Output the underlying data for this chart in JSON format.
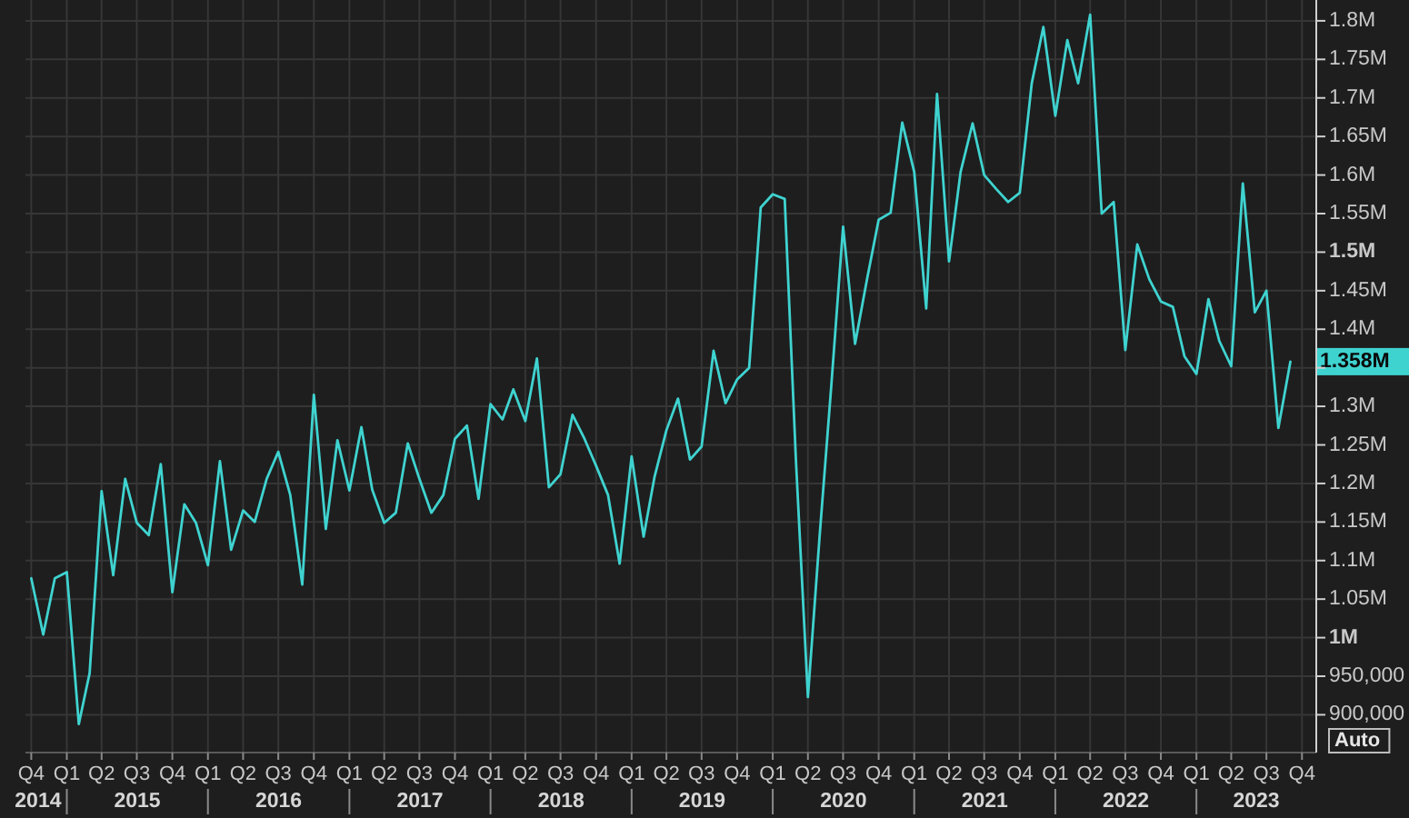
{
  "chart_data": {
    "type": "line",
    "color": "#3fd3d0",
    "x": [
      "2014-10",
      "2014-11",
      "2014-12",
      "2015-01",
      "2015-02",
      "2015-03",
      "2015-04",
      "2015-05",
      "2015-06",
      "2015-07",
      "2015-08",
      "2015-09",
      "2015-10",
      "2015-11",
      "2015-12",
      "2016-01",
      "2016-02",
      "2016-03",
      "2016-04",
      "2016-05",
      "2016-06",
      "2016-07",
      "2016-08",
      "2016-09",
      "2016-10",
      "2016-11",
      "2016-12",
      "2017-01",
      "2017-02",
      "2017-03",
      "2017-04",
      "2017-05",
      "2017-06",
      "2017-07",
      "2017-08",
      "2017-09",
      "2017-10",
      "2017-11",
      "2017-12",
      "2018-01",
      "2018-02",
      "2018-03",
      "2018-04",
      "2018-05",
      "2018-06",
      "2018-07",
      "2018-08",
      "2018-09",
      "2018-10",
      "2018-11",
      "2018-12",
      "2019-01",
      "2019-02",
      "2019-03",
      "2019-04",
      "2019-05",
      "2019-06",
      "2019-07",
      "2019-08",
      "2019-09",
      "2019-10",
      "2019-11",
      "2019-12",
      "2020-01",
      "2020-02",
      "2020-03",
      "2020-04",
      "2020-05",
      "2020-06",
      "2020-07",
      "2020-08",
      "2020-09",
      "2020-10",
      "2020-11",
      "2020-12",
      "2021-01",
      "2021-02",
      "2021-03",
      "2021-04",
      "2021-05",
      "2021-06",
      "2021-07",
      "2021-08",
      "2021-09",
      "2021-10",
      "2021-11",
      "2021-12",
      "2022-01",
      "2022-02",
      "2022-03",
      "2022-04",
      "2022-05",
      "2022-06",
      "2022-07",
      "2022-08",
      "2022-09",
      "2022-10",
      "2022-11",
      "2022-12",
      "2023-01",
      "2023-02",
      "2023-03",
      "2023-04",
      "2023-05",
      "2023-06",
      "2023-07",
      "2023-08",
      "2023-09"
    ],
    "values": [
      1077000,
      1004000,
      1077000,
      1085000,
      888000,
      954000,
      1190000,
      1081000,
      1206000,
      1149000,
      1133000,
      1225000,
      1059000,
      1173000,
      1149000,
      1094000,
      1229000,
      1114000,
      1165000,
      1150000,
      1206000,
      1241000,
      1185000,
      1069000,
      1315000,
      1141000,
      1256000,
      1191000,
      1273000,
      1192000,
      1149000,
      1162000,
      1252000,
      1206000,
      1162000,
      1185000,
      1258000,
      1275000,
      1180000,
      1303000,
      1283000,
      1322000,
      1281000,
      1362000,
      1195000,
      1212000,
      1289000,
      1258000,
      1223000,
      1185000,
      1096000,
      1235000,
      1131000,
      1208000,
      1269000,
      1310000,
      1231000,
      1248000,
      1372000,
      1304000,
      1335000,
      1350000,
      1558000,
      1575000,
      1569000,
      1230000,
      923000,
      1130000,
      1330000,
      1533000,
      1381000,
      1465000,
      1542000,
      1551000,
      1668000,
      1604000,
      1427000,
      1705000,
      1488000,
      1604000,
      1667000,
      1600000,
      1582000,
      1565000,
      1577000,
      1719000,
      1792000,
      1677000,
      1775000,
      1719000,
      1808000,
      1550000,
      1565000,
      1373000,
      1510000,
      1465000,
      1436000,
      1429000,
      1365000,
      1342000,
      1439000,
      1385000,
      1352000,
      1589000,
      1422000,
      1450000,
      1272000,
      1358000
    ],
    "value_labels": [
      null,
      null,
      null,
      null,
      null,
      null,
      null,
      null,
      null,
      null,
      null,
      null,
      null,
      null,
      null,
      null,
      null,
      null,
      null,
      null,
      null,
      null,
      null,
      null,
      null,
      null,
      null,
      null,
      null,
      null,
      null,
      null,
      null,
      null,
      null,
      null,
      null,
      null,
      null,
      null,
      null,
      null,
      null,
      null,
      null,
      null,
      null,
      null,
      null,
      null,
      null,
      null,
      null,
      null,
      null,
      null,
      null,
      null,
      null,
      null,
      null,
      null,
      null,
      null,
      null,
      null,
      null,
      null,
      null,
      null,
      null,
      null,
      null,
      null,
      null,
      null,
      null,
      null,
      null,
      null,
      null,
      null,
      null,
      null,
      null,
      null,
      null,
      null,
      null,
      null,
      null,
      null,
      null,
      null,
      null,
      null,
      null,
      null,
      null,
      null,
      null,
      null,
      null,
      null,
      null,
      null,
      null,
      "1.358M"
    ],
    "xlim": [
      "2014-09-16",
      "2023-11-07"
    ],
    "xticks": [
      {
        "value": "2014-10",
        "label": "Q4"
      },
      {
        "value": "2015-01",
        "label": "Q1"
      },
      {
        "value": "2015-04",
        "label": "Q2"
      },
      {
        "value": "2015-07",
        "label": "Q3"
      },
      {
        "value": "2015-10",
        "label": "Q4"
      },
      {
        "value": "2016-01",
        "label": "Q1"
      },
      {
        "value": "2016-04",
        "label": "Q2"
      },
      {
        "value": "2016-07",
        "label": "Q3"
      },
      {
        "value": "2016-10",
        "label": "Q4"
      },
      {
        "value": "2017-01",
        "label": "Q1"
      },
      {
        "value": "2017-04",
        "label": "Q2"
      },
      {
        "value": "2017-07",
        "label": "Q3"
      },
      {
        "value": "2017-10",
        "label": "Q4"
      },
      {
        "value": "2018-01",
        "label": "Q1"
      },
      {
        "value": "2018-04",
        "label": "Q2"
      },
      {
        "value": "2018-07",
        "label": "Q3"
      },
      {
        "value": "2018-10",
        "label": "Q4"
      },
      {
        "value": "2019-01",
        "label": "Q1"
      },
      {
        "value": "2019-04",
        "label": "Q2"
      },
      {
        "value": "2019-07",
        "label": "Q3"
      },
      {
        "value": "2019-10",
        "label": "Q4"
      },
      {
        "value": "2020-01",
        "label": "Q1"
      },
      {
        "value": "2020-04",
        "label": "Q2"
      },
      {
        "value": "2020-07",
        "label": "Q3"
      },
      {
        "value": "2020-10",
        "label": "Q4"
      },
      {
        "value": "2021-01",
        "label": "Q1"
      },
      {
        "value": "2021-04",
        "label": "Q2"
      },
      {
        "value": "2021-07",
        "label": "Q3"
      },
      {
        "value": "2021-10",
        "label": "Q4"
      },
      {
        "value": "2022-01",
        "label": "Q1"
      },
      {
        "value": "2022-04",
        "label": "Q2"
      },
      {
        "value": "2022-07",
        "label": "Q3"
      },
      {
        "value": "2022-10",
        "label": "Q4"
      },
      {
        "value": "2023-01",
        "label": "Q1"
      },
      {
        "value": "2023-04",
        "label": "Q2"
      },
      {
        "value": "2023-07",
        "label": "Q3"
      },
      {
        "value": "2023-10",
        "label": "Q4"
      }
    ],
    "ylim": [
      851000,
      1827000
    ],
    "yticks": [
      {
        "value": 900000,
        "label": "900,000"
      },
      {
        "value": 950000,
        "label": "950,000"
      },
      {
        "value": 1000000,
        "label": "1M"
      },
      {
        "value": 1050000,
        "label": "1.05M"
      },
      {
        "value": 1100000,
        "label": "1.1M"
      },
      {
        "value": 1150000,
        "label": "1.15M"
      },
      {
        "value": 1200000,
        "label": "1.2M"
      },
      {
        "value": 1250000,
        "label": "1.25M"
      },
      {
        "value": 1300000,
        "label": "1.3M"
      },
      {
        "value": 1350000,
        "label": null
      },
      {
        "value": 1400000,
        "label": "1.4M"
      },
      {
        "value": 1450000,
        "label": "1.45M"
      },
      {
        "value": 1500000,
        "label": "1.5M"
      },
      {
        "value": 1550000,
        "label": "1.55M"
      },
      {
        "value": 1600000,
        "label": "1.6M"
      },
      {
        "value": 1650000,
        "label": "1.65M"
      },
      {
        "value": 1700000,
        "label": "1.7M"
      },
      {
        "value": 1750000,
        "label": "1.75M"
      },
      {
        "value": 1800000,
        "label": "1.8M"
      }
    ],
    "grid": true,
    "annotations": [
      "2014",
      "2015",
      "2016",
      "2017",
      "2018",
      "2019",
      "2020",
      "2021",
      "2022",
      "2023",
      "Auto"
    ]
  }
}
